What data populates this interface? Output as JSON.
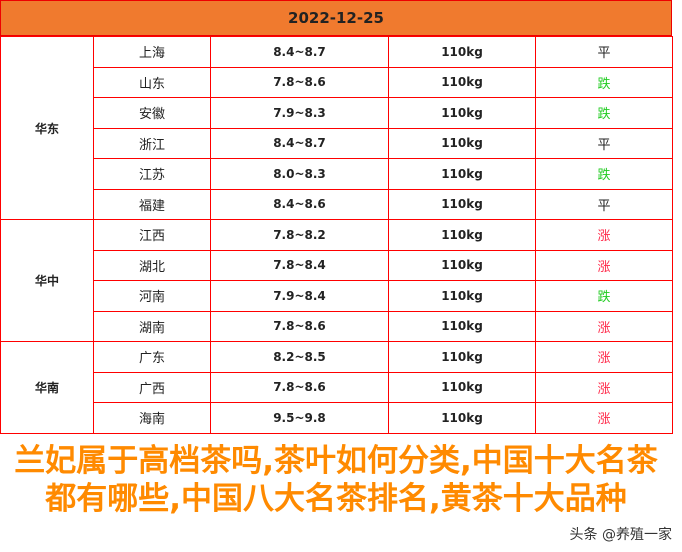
{
  "header": {
    "date": "2022-12-25"
  },
  "colors": {
    "header": "#f07a2e",
    "up": "#ff2a4a",
    "down": "#22cc22",
    "flat": "#222222",
    "grid": "#ff0000",
    "overlay": "#ff8a00"
  },
  "groups": [
    {
      "region": "华东",
      "rows": [
        {
          "province": "上海",
          "range": "8.4~8.7",
          "weight": "110kg",
          "trend": "平"
        },
        {
          "province": "山东",
          "range": "7.8~8.6",
          "weight": "110kg",
          "trend": "跌"
        },
        {
          "province": "安徽",
          "range": "7.9~8.3",
          "weight": "110kg",
          "trend": "跌"
        },
        {
          "province": "浙江",
          "range": "8.4~8.7",
          "weight": "110kg",
          "trend": "平"
        },
        {
          "province": "江苏",
          "range": "8.0~8.3",
          "weight": "110kg",
          "trend": "跌"
        },
        {
          "province": "福建",
          "range": "8.4~8.6",
          "weight": "110kg",
          "trend": "平"
        }
      ]
    },
    {
      "region": "华中",
      "rows": [
        {
          "province": "江西",
          "range": "7.8~8.2",
          "weight": "110kg",
          "trend": "涨"
        },
        {
          "province": "湖北",
          "range": "7.8~8.4",
          "weight": "110kg",
          "trend": "涨"
        },
        {
          "province": "河南",
          "range": "7.9~8.4",
          "weight": "110kg",
          "trend": "跌"
        },
        {
          "province": "湖南",
          "range": "7.8~8.6",
          "weight": "110kg",
          "trend": "涨"
        }
      ]
    },
    {
      "region": "华南",
      "rows": [
        {
          "province": "广东",
          "range": "8.2~8.5",
          "weight": "110kg",
          "trend": "涨"
        },
        {
          "province": "广西",
          "range": "7.8~8.6",
          "weight": "110kg",
          "trend": "涨"
        },
        {
          "province": "海南",
          "range": "9.5~9.8",
          "weight": "110kg",
          "trend": "涨"
        }
      ]
    }
  ],
  "overlay_title": "兰妃属于高档茶吗,茶叶如何分类,中国十大名茶都有哪些,中国八大名茶排名,黄茶十大品种",
  "watermark": "头条 @养殖一家"
}
